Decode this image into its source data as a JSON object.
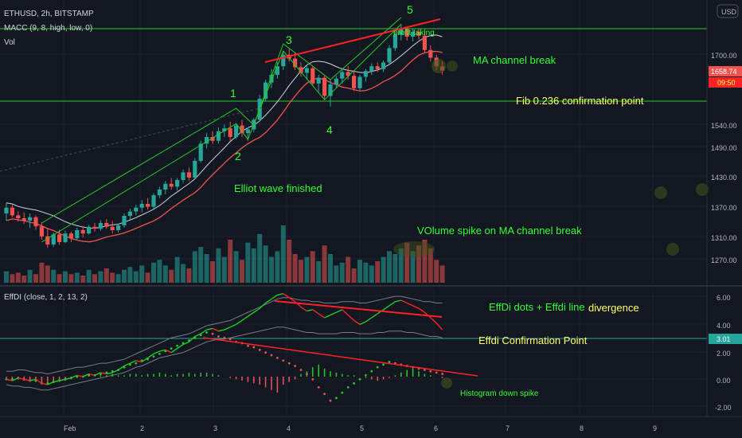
{
  "header": {
    "symbol": "ETHUSD, 2h, BITSTAMP",
    "indicator": "MACC (9, 8, high, low, 0)",
    "volume": "Vol",
    "currency": "USD"
  },
  "price_axis": {
    "ticks": [
      "1700.00",
      "1540.00",
      "1490.00",
      "1430.00",
      "1370.00",
      "1310.00",
      "1270.00"
    ],
    "current_price": "1658.74",
    "countdown": "09:50"
  },
  "osc_axis": {
    "ticks": [
      "6.00",
      "4.00",
      "2.00",
      "0.00",
      "-2.00"
    ],
    "current_value": "3.01"
  },
  "time_axis": {
    "ticks": [
      "Feb",
      "2",
      "3",
      "4",
      "5",
      "6",
      "7",
      "8",
      "9"
    ]
  },
  "oscillator_title": "EffDI (close, 1, 2, 13, 2)",
  "annotations": {
    "wave_1": "1",
    "wave_2": "2",
    "wave_3": "3",
    "wave_4": "4",
    "wave_5": "5",
    "profit_taking": "profit taking",
    "ma_channel_break": "MA channel break",
    "fib_confirmation": "Fib 0.236 confirmation point",
    "elliot_finished": "Elliot wave finished",
    "volume_spike": "VOlume spike on MA channel break",
    "effdi_divergence_a": "EffDi dots + Effdi line",
    "effdi_divergence_b": "divergence",
    "effdi_confirmation": "Effdi Confirmation Point",
    "histogram_spike": "Histogram down spike"
  },
  "colors": {
    "background": "#131722",
    "up": "#26a69a",
    "down": "#ef5350",
    "annotation": "#33ff33",
    "annotation_yellow": "#ffff66",
    "trendline": "#ff2222",
    "hline_green": "#22cc22",
    "hline_teal": "#26a69a",
    "price_tag": "#ef5350",
    "countdown_tag": "#ff2222"
  },
  "chart_data": {
    "type": "candlestick",
    "symbol": "ETHUSD",
    "interval": "2h",
    "ohlc": [
      [
        1360,
        1382,
        1345,
        1372
      ],
      [
        1372,
        1378,
        1352,
        1356
      ],
      [
        1356,
        1364,
        1343,
        1350
      ],
      [
        1350,
        1362,
        1338,
        1345
      ],
      [
        1345,
        1360,
        1330,
        1352
      ],
      [
        1352,
        1356,
        1326,
        1333
      ],
      [
        1333,
        1342,
        1305,
        1312
      ],
      [
        1312,
        1330,
        1288,
        1295
      ],
      [
        1295,
        1320,
        1290,
        1316
      ],
      [
        1316,
        1326,
        1294,
        1300
      ],
      [
        1300,
        1324,
        1298,
        1318
      ],
      [
        1318,
        1322,
        1300,
        1308
      ],
      [
        1308,
        1330,
        1304,
        1325
      ],
      [
        1325,
        1334,
        1310,
        1318
      ],
      [
        1318,
        1336,
        1316,
        1332
      ],
      [
        1332,
        1340,
        1322,
        1328
      ],
      [
        1328,
        1346,
        1324,
        1340
      ],
      [
        1340,
        1348,
        1328,
        1332
      ],
      [
        1332,
        1344,
        1318,
        1325
      ],
      [
        1325,
        1338,
        1320,
        1335
      ],
      [
        1335,
        1360,
        1330,
        1355
      ],
      [
        1355,
        1370,
        1346,
        1364
      ],
      [
        1364,
        1378,
        1356,
        1372
      ],
      [
        1372,
        1388,
        1362,
        1380
      ],
      [
        1380,
        1392,
        1368,
        1374
      ],
      [
        1374,
        1402,
        1370,
        1398
      ],
      [
        1398,
        1416,
        1392,
        1410
      ],
      [
        1410,
        1428,
        1400,
        1422
      ],
      [
        1422,
        1434,
        1410,
        1416
      ],
      [
        1416,
        1434,
        1408,
        1430
      ],
      [
        1430,
        1452,
        1424,
        1446
      ],
      [
        1446,
        1456,
        1428,
        1435
      ],
      [
        1435,
        1476,
        1432,
        1470
      ],
      [
        1470,
        1512,
        1466,
        1506
      ],
      [
        1506,
        1528,
        1496,
        1520
      ],
      [
        1520,
        1532,
        1506,
        1512
      ],
      [
        1512,
        1540,
        1506,
        1532
      ],
      [
        1532,
        1546,
        1520,
        1538
      ],
      [
        1538,
        1552,
        1512,
        1520
      ],
      [
        1520,
        1548,
        1516,
        1544
      ],
      [
        1544,
        1556,
        1520,
        1528
      ],
      [
        1528,
        1540,
        1512,
        1536
      ],
      [
        1536,
        1560,
        1530,
        1556
      ],
      [
        1556,
        1608,
        1552,
        1600
      ],
      [
        1600,
        1640,
        1594,
        1634
      ],
      [
        1634,
        1662,
        1622,
        1650
      ],
      [
        1650,
        1676,
        1642,
        1668
      ],
      [
        1668,
        1700,
        1660,
        1692
      ],
      [
        1692,
        1706,
        1678,
        1684
      ],
      [
        1684,
        1696,
        1660,
        1666
      ],
      [
        1666,
        1676,
        1646,
        1654
      ],
      [
        1654,
        1672,
        1640,
        1664
      ],
      [
        1664,
        1668,
        1626,
        1632
      ],
      [
        1632,
        1650,
        1612,
        1644
      ],
      [
        1644,
        1648,
        1598,
        1606
      ],
      [
        1606,
        1640,
        1584,
        1630
      ],
      [
        1630,
        1648,
        1622,
        1642
      ],
      [
        1642,
        1664,
        1632,
        1656
      ],
      [
        1656,
        1668,
        1640,
        1648
      ],
      [
        1648,
        1660,
        1616,
        1622
      ],
      [
        1622,
        1650,
        1616,
        1646
      ],
      [
        1646,
        1662,
        1636,
        1658
      ],
      [
        1658,
        1674,
        1650,
        1668
      ],
      [
        1668,
        1676,
        1656,
        1662
      ],
      [
        1662,
        1680,
        1656,
        1676
      ],
      [
        1676,
        1712,
        1670,
        1706
      ],
      [
        1706,
        1740,
        1700,
        1734
      ],
      [
        1734,
        1756,
        1722,
        1746
      ],
      [
        1746,
        1752,
        1722,
        1730
      ],
      [
        1730,
        1746,
        1720,
        1740
      ],
      [
        1740,
        1748,
        1724,
        1732
      ],
      [
        1732,
        1744,
        1696,
        1702
      ],
      [
        1702,
        1712,
        1678,
        1686
      ],
      [
        1686,
        1692,
        1660,
        1668
      ],
      [
        1668,
        1678,
        1650,
        1659
      ]
    ],
    "volume": [
      8,
      6,
      7,
      5,
      9,
      6,
      14,
      12,
      9,
      6,
      8,
      6,
      7,
      5,
      9,
      6,
      8,
      10,
      7,
      6,
      9,
      11,
      8,
      12,
      7,
      14,
      16,
      12,
      9,
      18,
      13,
      10,
      22,
      25,
      20,
      15,
      24,
      18,
      30,
      22,
      16,
      28,
      24,
      34,
      26,
      18,
      22,
      40,
      30,
      20,
      16,
      18,
      22,
      15,
      26,
      20,
      12,
      14,
      18,
      10,
      16,
      14,
      12,
      15,
      18,
      22,
      20,
      24,
      28,
      22,
      26,
      30,
      24,
      16,
      12
    ],
    "annotation_levels": {
      "fib_0.236": 1588
    },
    "oscillator": {
      "name": "EffDI",
      "series_line": [
        -0.2,
        -0.3,
        -0.1,
        -0.2,
        -0.3,
        -0.2,
        -0.5,
        -0.6,
        -0.4,
        -0.3,
        -0.2,
        -0.1,
        0.1,
        0.0,
        0.2,
        0.1,
        0.3,
        0.2,
        0.3,
        0.5,
        0.8,
        1.0,
        1.2,
        1.1,
        1.4,
        1.7,
        1.9,
        2.0,
        1.8,
        2.1,
        2.4,
        2.6,
        3.0,
        3.2,
        3.5,
        3.6,
        3.4,
        3.5,
        3.7,
        3.9,
        4.2,
        4.5,
        4.8,
        5.1,
        5.5,
        5.8,
        6.1,
        6.2,
        5.9,
        5.6,
        5.2,
        4.9,
        5.0,
        4.7,
        4.4,
        4.6,
        4.8,
        5.0,
        4.6,
        4.2,
        3.9,
        4.1,
        4.4,
        4.7,
        5.0,
        5.3,
        5.6,
        5.7,
        5.5,
        5.3,
        5.1,
        4.8,
        4.4,
        4.0,
        3.5
      ],
      "dots": [
        -0.2,
        -0.2,
        -0.1,
        -0.2,
        -0.3,
        -0.3,
        -0.5,
        -0.5,
        -0.4,
        -0.3,
        -0.2,
        -0.1,
        0.0,
        0.0,
        0.1,
        0.1,
        0.2,
        0.3,
        0.4,
        0.5,
        0.7,
        0.9,
        1.0,
        1.2,
        1.3,
        1.5,
        1.7,
        1.9,
        2.1,
        2.3,
        2.5,
        2.7,
        2.9,
        3.1,
        3.3,
        3.2,
        3.0,
        2.9,
        2.8,
        2.6,
        2.5,
        2.3,
        2.2,
        2.0,
        1.8,
        1.6,
        1.4,
        1.2,
        1.0,
        0.8,
        0.5,
        0.2,
        -0.2,
        -0.8,
        -1.3,
        -1.8,
        -1.6,
        -1.2,
        -0.8,
        -0.5,
        -0.2,
        0.1,
        0.4,
        0.7,
        0.9,
        1.1,
        1.0,
        0.9,
        0.8,
        0.7,
        0.6,
        0.5,
        0.4,
        0.3,
        0.2
      ],
      "upper_band": [
        0.4,
        0.4,
        0.5,
        0.5,
        0.4,
        0.3,
        0.3,
        0.2,
        0.3,
        0.4,
        0.5,
        0.6,
        0.7,
        0.7,
        0.8,
        0.9,
        1.0,
        1.0,
        1.1,
        1.2,
        1.3,
        1.5,
        1.7,
        1.9,
        2.1,
        2.3,
        2.5,
        2.7,
        2.9,
        3.0,
        3.1,
        3.2,
        3.4,
        3.6,
        3.8,
        3.9,
        4.0,
        4.1,
        4.2,
        4.4,
        4.6,
        4.8,
        5.0,
        5.2,
        5.4,
        5.6,
        5.8,
        5.9,
        5.9,
        5.8,
        5.7,
        5.7,
        5.6,
        5.6,
        5.5,
        5.5,
        5.5,
        5.6,
        5.6,
        5.6,
        5.5,
        5.5,
        5.6,
        5.7,
        5.8,
        5.9,
        6.0,
        6.0,
        5.9,
        5.8,
        5.7,
        5.6,
        5.6,
        5.5,
        5.5
      ],
      "lower_band": [
        -0.6,
        -0.7,
        -0.7,
        -0.8,
        -0.8,
        -0.9,
        -1.0,
        -1.0,
        -0.9,
        -0.8,
        -0.7,
        -0.6,
        -0.5,
        -0.4,
        -0.3,
        -0.2,
        -0.1,
        0.0,
        0.1,
        0.2,
        0.3,
        0.5,
        0.7,
        0.8,
        1.0,
        1.2,
        1.4,
        1.5,
        1.6,
        1.7,
        1.8,
        2.0,
        2.2,
        2.4,
        2.6,
        2.7,
        2.8,
        2.8,
        2.9,
        3.0,
        3.1,
        3.2,
        3.3,
        3.4,
        3.5,
        3.6,
        3.7,
        3.7,
        3.6,
        3.5,
        3.4,
        3.3,
        3.3,
        3.2,
        3.2,
        3.2,
        3.2,
        3.3,
        3.3,
        3.3,
        3.2,
        3.2,
        3.2,
        3.3,
        3.3,
        3.4,
        3.4,
        3.4,
        3.3,
        3.3,
        3.2,
        3.1,
        3.0,
        3.0,
        2.9
      ],
      "histogram": [
        -0.1,
        -0.2,
        -0.2,
        -0.3,
        -0.3,
        -0.4,
        -0.5,
        -0.5,
        -0.4,
        -0.3,
        -0.3,
        -0.2,
        -0.1,
        0.0,
        0.1,
        0.0,
        0.1,
        0.1,
        0.2,
        0.1,
        0.1,
        0.2,
        0.2,
        0.1,
        0.2,
        0.2,
        0.3,
        0.2,
        0.1,
        0.2,
        0.2,
        0.3,
        0.2,
        0.3,
        0.3,
        0.2,
        0.1,
        0.0,
        -0.1,
        -0.2,
        -0.3,
        -0.4,
        -0.5,
        -0.6,
        -0.8,
        -1.0,
        -1.2,
        -0.6,
        -0.4,
        -0.2,
        0.2,
        0.4,
        0.7,
        0.9,
        0.6,
        0.4,
        0.3,
        0.2,
        0.1,
        0.1,
        0.0,
        -0.1,
        -0.2,
        -0.3,
        -0.2,
        -0.1,
        0.1,
        0.3,
        0.5,
        0.6,
        0.4,
        0.2,
        0.1,
        0.0,
        -0.1
      ]
    },
    "ylim_price": [
      1240,
      1790
    ],
    "ylim_oscillator": [
      -2.8,
      6.6
    ]
  }
}
